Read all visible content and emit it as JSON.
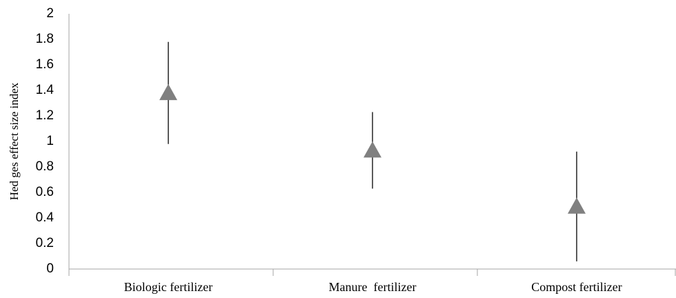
{
  "chart_data": {
    "type": "scatter",
    "ylabel": "Hed ges effect size index",
    "categories": [
      "Biologic fertilizer",
      "Manure  fertilizer",
      "Compost fertilizer"
    ],
    "values": [
      1.38,
      0.93,
      0.49
    ],
    "errors": [
      0.4,
      0.3,
      0.43
    ],
    "color": "#808080",
    "ylim": [
      0,
      2
    ],
    "yticks": [
      0,
      0.2,
      0.4,
      0.6,
      0.8,
      1,
      1.2,
      1.4,
      1.6,
      1.8,
      2
    ],
    "grid": false
  }
}
